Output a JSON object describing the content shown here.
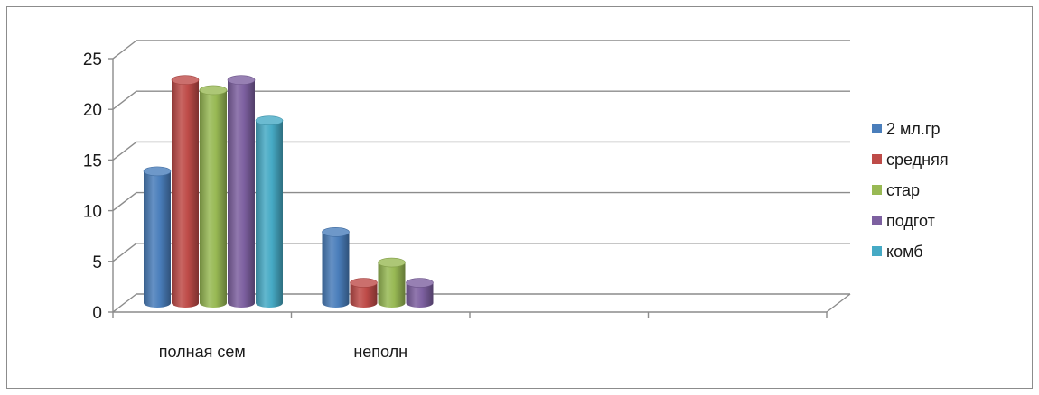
{
  "chart_data": {
    "type": "bar",
    "style": "3d-cylinder",
    "categories": [
      "полная сем",
      "неполн",
      "",
      ""
    ],
    "series": [
      {
        "name": "2 мл.гр",
        "color": "#4a7ebb",
        "values": [
          13,
          7,
          null,
          null
        ]
      },
      {
        "name": "средняя",
        "color": "#be4b48",
        "values": [
          22,
          2,
          null,
          null
        ]
      },
      {
        "name": "стар",
        "color": "#98b954",
        "values": [
          21,
          4,
          null,
          null
        ]
      },
      {
        "name": "подгот",
        "color": "#7d60a0",
        "values": [
          22,
          2,
          null,
          null
        ]
      },
      {
        "name": "комб",
        "color": "#46aac5",
        "values": [
          18,
          null,
          null,
          null
        ]
      }
    ],
    "ylim": [
      0,
      25
    ],
    "yticks": [
      "0",
      "5",
      "10",
      "15",
      "20",
      "25"
    ],
    "grid": true,
    "legend": "right"
  }
}
